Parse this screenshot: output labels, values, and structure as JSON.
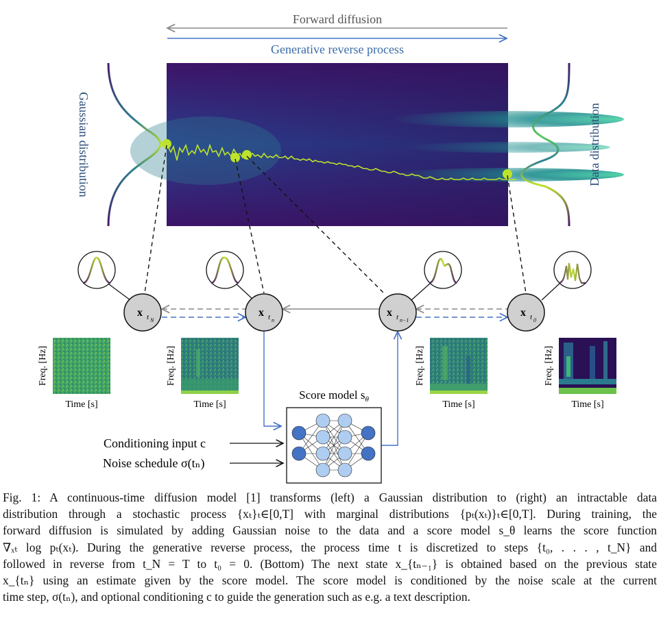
{
  "top": {
    "forward_label": "Forward diffusion",
    "reverse_label": "Generative reverse process",
    "left_label": "Gaussian distribution",
    "right_label": "Data distribution"
  },
  "nodes": [
    {
      "base": "x",
      "sub": "t",
      "subsub": "N"
    },
    {
      "base": "x",
      "sub": "t",
      "subsub": "n"
    },
    {
      "base": "x",
      "sub": "t",
      "subsub": "n−1"
    },
    {
      "base": "x",
      "sub": "t",
      "subsub": "0"
    }
  ],
  "spectrograms": [
    {
      "ylabel": "Freq. [Hz]",
      "xlabel": "Time [s]"
    },
    {
      "ylabel": "Freq. [Hz]",
      "xlabel": "Time [s]"
    },
    {
      "ylabel": "Freq. [Hz]",
      "xlabel": "Time [s]"
    },
    {
      "ylabel": "Freq. [Hz]",
      "xlabel": "Time [s]"
    }
  ],
  "score_model": {
    "label": "Score model s",
    "sub": "θ"
  },
  "inputs": {
    "conditioning": "Conditioning input c",
    "noise_schedule": "Noise schedule σ(tₙ)"
  },
  "caption": {
    "lines": [
      "Fig. 1: A continuous-time diffusion model [1] transforms (left) a Gaussian distribution to (right) an intractable data",
      "distribution through a stochastic process {xₜ}ₜ∈[0,T] with marginal distributions {pₜ(xₜ)}ₜ∈[0,T]. During training, the",
      "forward diffusion is simulated by adding Gaussian noise to the data and a score model s_θ learns the score function",
      "∇ₓₜ log pₜ(xₜ). During the generative reverse process, the process time t is discretized to steps {t₀, . . . , t_N} and",
      "followed in reverse from t_N = T to t₀ = 0. (Bottom) The next state x_{tₙ₋₁} is obtained based on the previous state",
      "x_{tₙ} using an estimate given by the score model. The score model is conditioned by the noise scale at the current",
      "time step, σ(tₙ), and optional conditioning c to guide the generation such as e.g. a text description."
    ]
  },
  "colors": {
    "forward_arrow": "#888888",
    "reverse_arrow": "#4472c4",
    "reverse_text": "#3a6aa8",
    "label_blue": "#2b4d7a",
    "node_fill": "#d0d0d0",
    "nn_dark": "#4472c4",
    "nn_light": "#aecdf0",
    "trajectory": "#bde32b"
  }
}
